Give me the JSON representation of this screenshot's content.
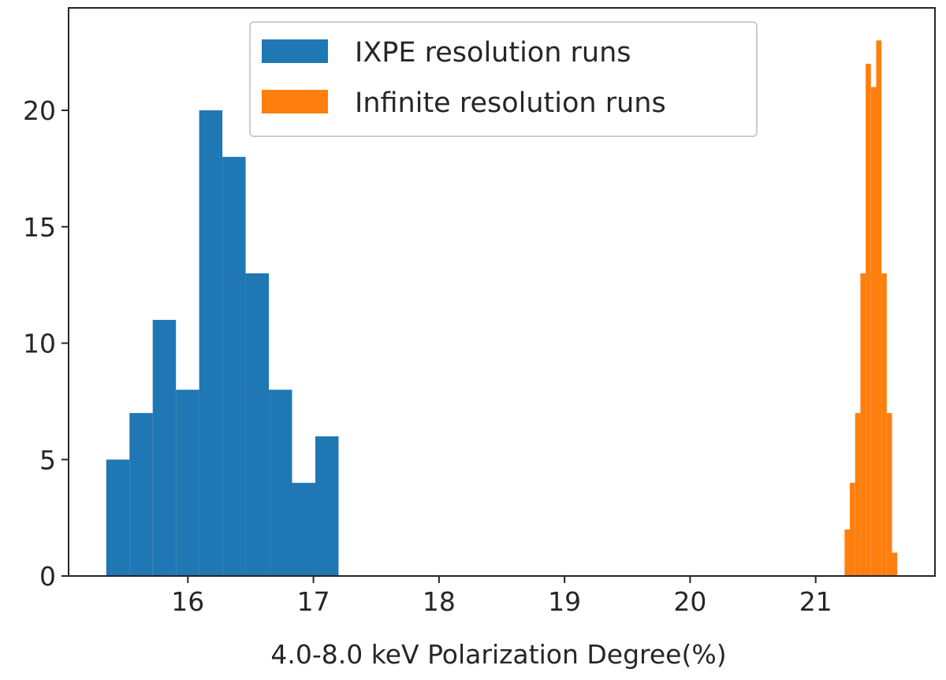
{
  "chart_data": {
    "type": "bar",
    "title": "",
    "xlabel": "4.0-8.0 keV Polarization Degree(%)",
    "ylabel": "",
    "xlim": [
      15.05,
      21.95
    ],
    "ylim": [
      0,
      24.4
    ],
    "xticks": [
      "16",
      "17",
      "18",
      "19",
      "20",
      "21"
    ],
    "yticks": [
      "0",
      "5",
      "10",
      "15",
      "20"
    ],
    "grid": false,
    "legend_position": "top-center",
    "series": [
      {
        "name": "IXPE resolution runs",
        "color": "#1f77b4",
        "bin_edges": [
          15.35,
          15.535,
          15.72,
          15.905,
          16.09,
          16.275,
          16.46,
          16.645,
          16.83,
          17.015,
          17.2
        ],
        "counts": [
          5,
          7,
          11,
          8,
          20,
          18,
          13,
          8,
          4,
          6
        ]
      },
      {
        "name": "Infinite resolution runs",
        "color": "#ff7f0e",
        "bin_edges": [
          21.23,
          21.272,
          21.314,
          21.356,
          21.398,
          21.44,
          21.482,
          21.524,
          21.566,
          21.608,
          21.65
        ],
        "counts": [
          2,
          4,
          7,
          13,
          22,
          21,
          23,
          13,
          7,
          1
        ]
      }
    ]
  }
}
